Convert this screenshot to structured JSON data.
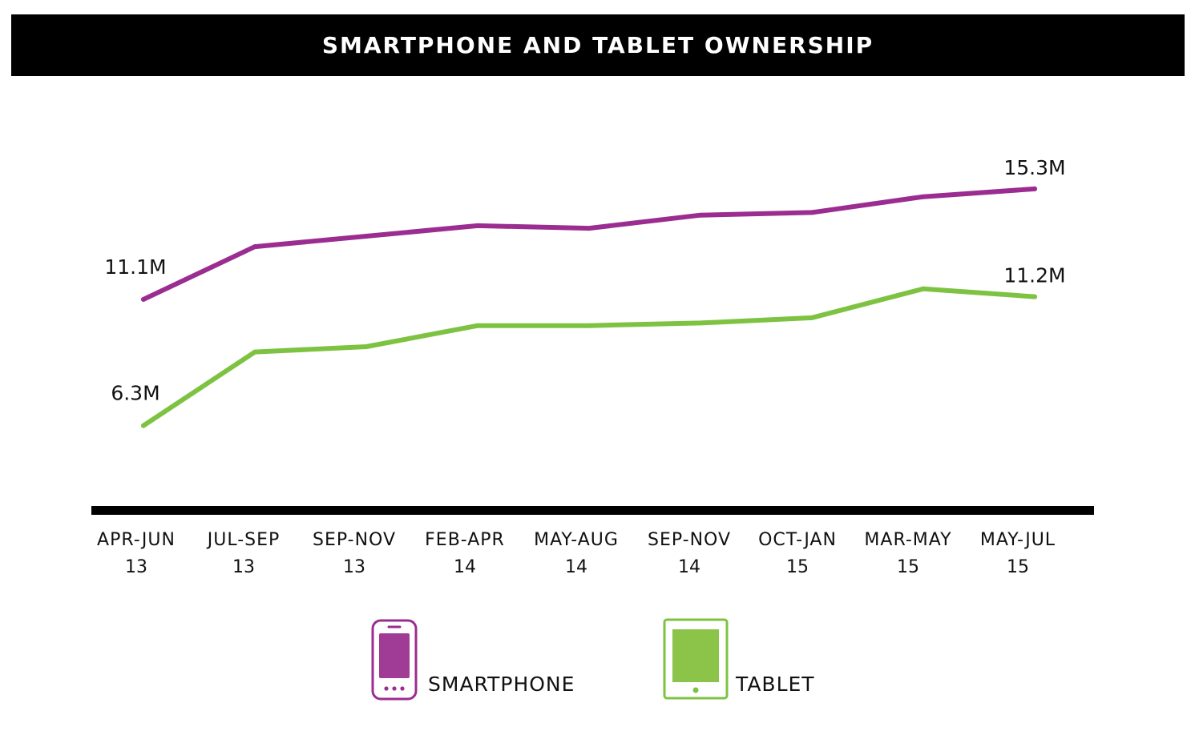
{
  "chart_data": {
    "type": "line",
    "title": "SMARTPHONE AND TABLET OWNERSHIP",
    "categories": [
      [
        "APR-JUN",
        "13"
      ],
      [
        "JUL-SEP",
        "13"
      ],
      [
        "SEP-NOV",
        "13"
      ],
      [
        "FEB-APR",
        "14"
      ],
      [
        "MAY-AUG",
        "14"
      ],
      [
        "SEP-NOV",
        "14"
      ],
      [
        "OCT-JAN",
        "15"
      ],
      [
        "MAR-MAY",
        "15"
      ],
      [
        "MAY-JUL",
        "15"
      ]
    ],
    "series": [
      {
        "name": "SMARTPHONE",
        "color": "#9b2d91",
        "values": [
          11.1,
          13.1,
          13.5,
          13.9,
          13.8,
          14.3,
          14.4,
          15.0,
          15.3
        ],
        "start_label": "11.1M",
        "end_label": "15.3M"
      },
      {
        "name": "TABLET",
        "color": "#7ec242",
        "values": [
          6.3,
          9.1,
          9.3,
          10.1,
          10.1,
          10.2,
          10.4,
          11.5,
          11.2
        ],
        "start_label": "6.3M",
        "end_label": "11.2M"
      }
    ],
    "xlabel": "",
    "ylabel": "",
    "ylim": [
      3.0,
      17.0
    ],
    "grid": false,
    "legend_position": "bottom-center"
  },
  "legend": {
    "smartphone_label": "SMARTPHONE",
    "tablet_label": "TABLET",
    "smartphone_icon": "smartphone-icon",
    "tablet_icon": "tablet-icon",
    "smartphone_color": "#9b2d91",
    "smartphone_fill": "#a03c96",
    "tablet_color": "#7ec242",
    "tablet_fill": "#8cc44a"
  }
}
